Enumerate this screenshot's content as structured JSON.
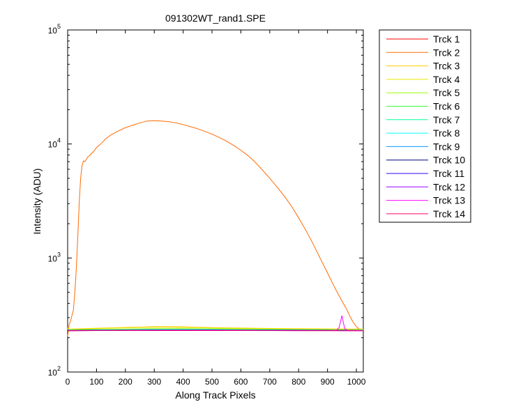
{
  "chart_data": {
    "type": "line",
    "title": "091302WT_rand1.SPE",
    "xlabel": "Along Track Pixels",
    "ylabel": "Intensity (ADU)",
    "xlim": [
      0,
      1024
    ],
    "ylim": [
      100,
      100000
    ],
    "yscale": "log",
    "grid": false,
    "legend_position": "outside-right",
    "x_ticks": [
      0,
      100,
      200,
      300,
      400,
      500,
      600,
      700,
      800,
      900,
      1000
    ],
    "x_tick_labels": [
      "0",
      "100",
      "200",
      "300",
      "400",
      "500",
      "600",
      "700",
      "800",
      "900",
      "1000"
    ],
    "y_ticks": [
      100,
      1000,
      10000,
      100000
    ],
    "y_tick_labels": [
      {
        "base": "10",
        "exp": "2"
      },
      {
        "base": "10",
        "exp": "3"
      },
      {
        "base": "10",
        "exp": "4"
      },
      {
        "base": "10",
        "exp": "5"
      }
    ],
    "series": [
      {
        "name": "Trck 1",
        "color": "#ff0000",
        "x": [
          0,
          5,
          50,
          150,
          250,
          300,
          400,
          500,
          700,
          900,
          1024
        ],
        "y": [
          240,
          232,
          232,
          232,
          233,
          233,
          233,
          233,
          232,
          232,
          232
        ]
      },
      {
        "name": "Trck 2",
        "color": "#ff6a00",
        "x": [
          0,
          5,
          10,
          20,
          25,
          30,
          35,
          40,
          45,
          50,
          55,
          60,
          70,
          80,
          90,
          100,
          110,
          120,
          130,
          140,
          150,
          175,
          200,
          225,
          250,
          275,
          300,
          325,
          350,
          375,
          400,
          425,
          450,
          475,
          500,
          525,
          550,
          575,
          600,
          625,
          650,
          675,
          700,
          725,
          750,
          775,
          800,
          825,
          850,
          875,
          900,
          925,
          950,
          965,
          980,
          990,
          1000,
          1010,
          1024
        ],
        "y": [
          205,
          260,
          280,
          350,
          500,
          800,
          1500,
          3000,
          5000,
          6500,
          7100,
          7000,
          7700,
          8100,
          8600,
          9300,
          9800,
          10300,
          11000,
          11500,
          12000,
          13000,
          13900,
          14600,
          15300,
          15900,
          16000,
          15900,
          15700,
          15300,
          14800,
          14200,
          13600,
          12900,
          12200,
          11400,
          10600,
          9700,
          8800,
          7900,
          6900,
          5900,
          5000,
          4200,
          3500,
          2850,
          2250,
          1750,
          1330,
          990,
          740,
          550,
          420,
          360,
          300,
          270,
          250,
          238,
          232
        ]
      },
      {
        "name": "Trck 3",
        "color": "#ffcc00",
        "x": [
          0,
          5,
          50,
          100,
          150,
          200,
          250,
          300,
          350,
          400,
          450,
          500,
          600,
          700,
          800,
          900,
          1024
        ],
        "y": [
          245,
          238,
          240,
          242,
          244,
          246,
          248,
          250,
          250,
          249,
          247,
          245,
          243,
          241,
          240,
          239,
          238
        ]
      },
      {
        "name": "Trck 4",
        "color": "#e6e600",
        "x": [
          0,
          5,
          50,
          100,
          150,
          200,
          250,
          300,
          350,
          400,
          450,
          500,
          600,
          700,
          800,
          900,
          1024
        ],
        "y": [
          243,
          236,
          238,
          240,
          242,
          244,
          246,
          247,
          247,
          246,
          245,
          243,
          241,
          239,
          238,
          237,
          236
        ]
      },
      {
        "name": "Trck 5",
        "color": "#99ff00",
        "x": [
          0,
          5,
          50,
          100,
          200,
          300,
          400,
          500,
          600,
          700,
          800,
          900,
          1024
        ],
        "y": [
          240,
          234,
          235,
          236,
          238,
          240,
          240,
          239,
          238,
          237,
          236,
          235,
          234
        ]
      },
      {
        "name": "Trck 6",
        "color": "#33ff33",
        "x": [
          0,
          5,
          50,
          100,
          200,
          300,
          400,
          500,
          600,
          700,
          800,
          900,
          1024
        ],
        "y": [
          238,
          233,
          234,
          235,
          236,
          237,
          237,
          237,
          236,
          235,
          234,
          234,
          233
        ]
      },
      {
        "name": "Trck 7",
        "color": "#00ff99",
        "x": [
          0,
          5,
          50,
          100,
          200,
          300,
          400,
          500,
          600,
          700,
          800,
          900,
          1024
        ],
        "y": [
          237,
          233,
          233,
          234,
          235,
          236,
          236,
          236,
          235,
          234,
          234,
          233,
          233
        ]
      },
      {
        "name": "Trck 8",
        "color": "#00ffff",
        "x": [
          0,
          5,
          50,
          100,
          200,
          300,
          400,
          500,
          600,
          700,
          800,
          900,
          1024
        ],
        "y": [
          236,
          232,
          233,
          233,
          234,
          235,
          235,
          235,
          234,
          234,
          233,
          233,
          232
        ]
      },
      {
        "name": "Trck 9",
        "color": "#0099ff",
        "x": [
          0,
          5,
          50,
          100,
          200,
          300,
          400,
          500,
          600,
          700,
          800,
          900,
          1024
        ],
        "y": [
          236,
          232,
          232,
          233,
          233,
          234,
          234,
          234,
          233,
          233,
          233,
          232,
          232
        ]
      },
      {
        "name": "Trck 10",
        "color": "#000080",
        "x": [
          0,
          5,
          50,
          100,
          200,
          300,
          400,
          500,
          600,
          700,
          800,
          900,
          1024
        ],
        "y": [
          235,
          231,
          232,
          232,
          233,
          233,
          233,
          233,
          233,
          232,
          232,
          232,
          231
        ]
      },
      {
        "name": "Trck 11",
        "color": "#3300ff",
        "x": [
          0,
          5,
          50,
          100,
          200,
          300,
          400,
          500,
          600,
          700,
          800,
          900,
          1024
        ],
        "y": [
          235,
          231,
          231,
          232,
          232,
          233,
          233,
          233,
          232,
          232,
          232,
          231,
          231
        ]
      },
      {
        "name": "Trck 12",
        "color": "#9900ff",
        "x": [
          0,
          5,
          50,
          100,
          200,
          300,
          400,
          500,
          600,
          700,
          800,
          900,
          1024
        ],
        "y": [
          234,
          230,
          231,
          231,
          232,
          232,
          232,
          232,
          232,
          231,
          231,
          231,
          230
        ]
      },
      {
        "name": "Trck 13",
        "color": "#ff00ff",
        "x": [
          0,
          5,
          50,
          100,
          200,
          300,
          400,
          500,
          600,
          700,
          800,
          900,
          930,
          940,
          945,
          950,
          955,
          960,
          970,
          1024
        ],
        "y": [
          234,
          230,
          231,
          231,
          232,
          232,
          232,
          232,
          232,
          231,
          231,
          231,
          232,
          245,
          275,
          312,
          270,
          240,
          232,
          231
        ]
      },
      {
        "name": "Trck 14",
        "color": "#ff0066",
        "x": [
          0,
          5,
          50,
          100,
          200,
          300,
          400,
          500,
          600,
          700,
          800,
          900,
          1024
        ],
        "y": [
          233,
          230,
          230,
          231,
          231,
          231,
          231,
          231,
          231,
          231,
          230,
          230,
          230
        ]
      }
    ]
  }
}
